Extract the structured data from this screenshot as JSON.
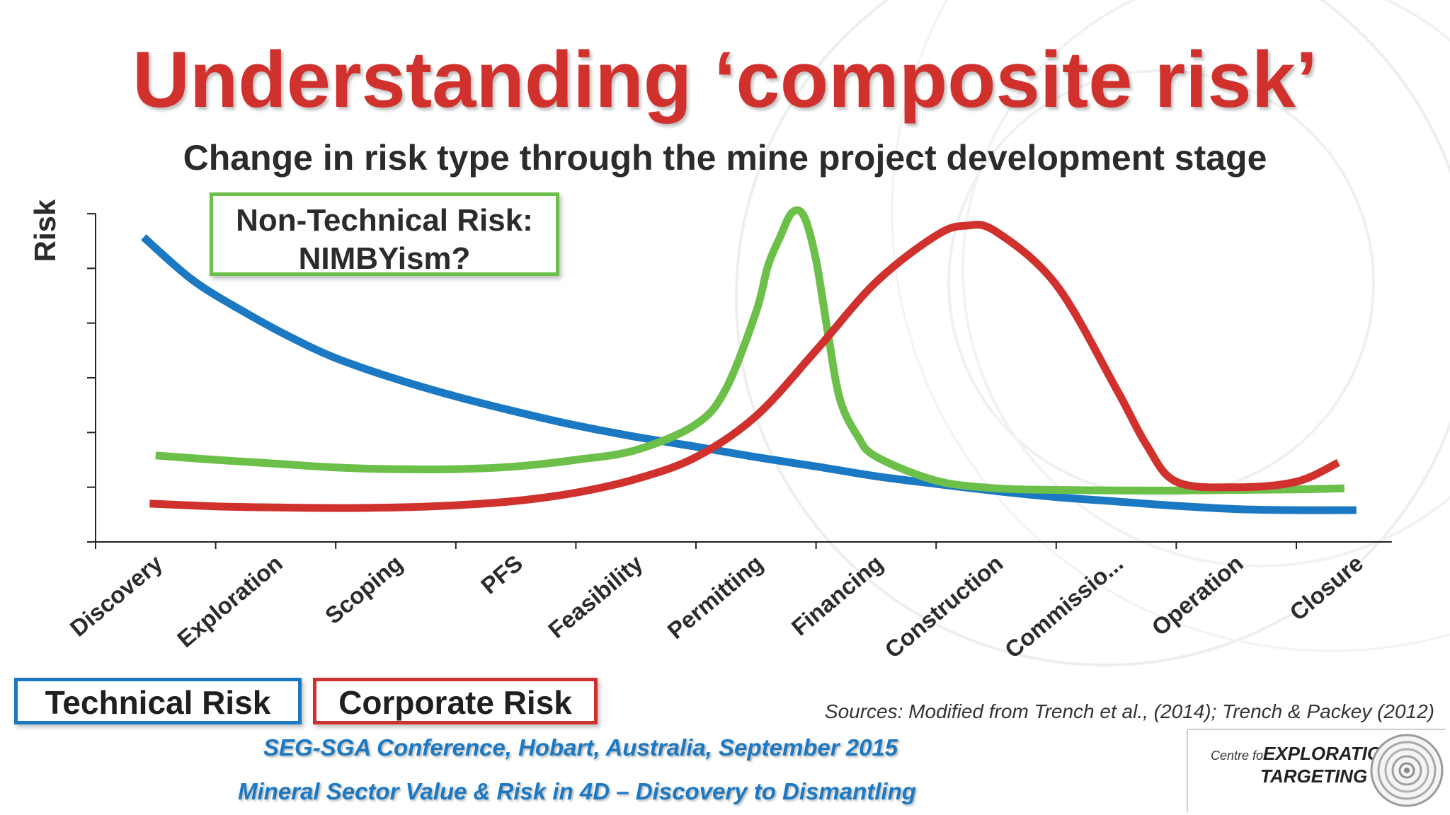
{
  "title": "Understanding ‘composite risk’",
  "subtitle": "Change in risk type through the mine project development stage",
  "annotation": {
    "line1": "Non-Technical Risk:",
    "line2": "NIMBYism?"
  },
  "legend": {
    "technical": "Technical Risk",
    "corporate": "Corporate Risk"
  },
  "sources": "Sources: Modified from Trench et al., (2014); Trench & Packey (2012)",
  "footer": {
    "line1": "SEG-SGA Conference, Hobart, Australia, September 2015",
    "line2": "Mineral Sector Value & Risk in 4D – Discovery to Dismantling"
  },
  "logo": {
    "small": "Centre for",
    "line1": "EXPLORATION",
    "line2": "TARGETING"
  },
  "colors": {
    "title": "#d0312d",
    "technical": "#1b79c4",
    "corporate": "#d0312d",
    "non_technical": "#6cc04a"
  },
  "chart_data": {
    "type": "line",
    "title": "Understanding ‘composite risk’",
    "subtitle": "Change in risk type through the mine project development stage",
    "xlabel": "",
    "ylabel": "Risk",
    "categories": [
      "Discovery",
      "Exploration",
      "Scoping",
      "PFS",
      "Feasibility",
      "Permitting",
      "Financing",
      "Construction",
      "Commissio...",
      "Operation",
      "Closure"
    ],
    "ylim": [
      0,
      6
    ],
    "y_tick_count": 7,
    "y_tick_labels": false,
    "grid": false,
    "legend_placement": "bottom-left",
    "series": [
      {
        "name": "Technical Risk",
        "color": "#1b79c4",
        "x": [
          0.4,
          0.8,
          1.2,
          1.6,
          2.0,
          2.5,
          3.0,
          3.5,
          4.0,
          4.5,
          5.0,
          5.5,
          6.0,
          6.5,
          7.0,
          7.5,
          8.0,
          8.5,
          9.0,
          9.5,
          10.0,
          10.5
        ],
        "y": [
          5.57,
          4.8,
          4.25,
          3.77,
          3.36,
          2.98,
          2.66,
          2.38,
          2.13,
          1.92,
          1.74,
          1.55,
          1.38,
          1.2,
          1.06,
          0.93,
          0.82,
          0.74,
          0.66,
          0.6,
          0.58,
          0.58
        ]
      },
      {
        "name": "Non-Technical Risk: NIMBYism?",
        "color": "#6cc04a",
        "x": [
          0.5,
          1.0,
          1.5,
          2.0,
          2.5,
          3.0,
          3.5,
          4.0,
          4.5,
          5.0,
          5.25,
          5.5,
          5.6,
          5.7,
          5.8,
          5.9,
          6.0,
          6.1,
          6.2,
          6.35,
          6.5,
          7.0,
          7.5,
          8.0,
          8.5,
          9.0,
          9.5,
          10.0,
          10.4
        ],
        "y": [
          1.58,
          1.5,
          1.43,
          1.36,
          1.33,
          1.33,
          1.38,
          1.5,
          1.68,
          2.15,
          2.8,
          4.2,
          5.05,
          5.57,
          6.02,
          5.95,
          5.15,
          3.8,
          2.6,
          1.92,
          1.56,
          1.12,
          0.98,
          0.95,
          0.94,
          0.94,
          0.95,
          0.96,
          0.98
        ]
      },
      {
        "name": "Corporate Risk",
        "color": "#d0312d",
        "x": [
          0.45,
          1.0,
          1.5,
          2.0,
          2.5,
          3.0,
          3.5,
          4.0,
          4.5,
          5.0,
          5.5,
          6.0,
          6.5,
          7.0,
          7.25,
          7.5,
          8.0,
          8.5,
          8.75,
          9.0,
          9.5,
          10.0,
          10.35
        ],
        "y": [
          0.7,
          0.65,
          0.63,
          0.62,
          0.63,
          0.67,
          0.75,
          0.9,
          1.15,
          1.55,
          2.3,
          3.5,
          4.75,
          5.6,
          5.78,
          5.67,
          4.7,
          2.8,
          1.78,
          1.1,
          1.0,
          1.1,
          1.45
        ]
      }
    ]
  }
}
